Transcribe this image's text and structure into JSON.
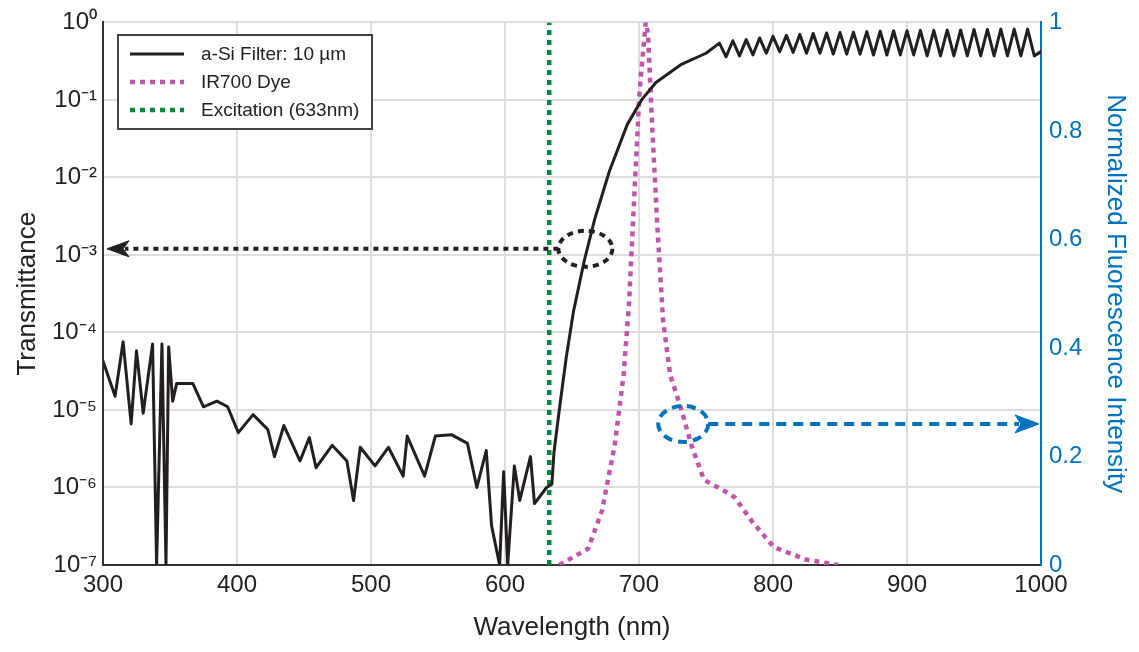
{
  "chart_data": {
    "type": "line",
    "xlabel": "Wavelength (nm)",
    "ylabel": "Transmittance",
    "y2label": "Normalized Fluorescence Intensity",
    "xlim": [
      300,
      1000
    ],
    "xticks": [
      300,
      400,
      500,
      600,
      700,
      800,
      900,
      1000
    ],
    "ylim": [
      1e-07,
      1
    ],
    "yticks": [
      {
        "value": 1,
        "label": "10⁰"
      },
      {
        "value": 0.1,
        "label": "10⁻¹"
      },
      {
        "value": 0.01,
        "label": "10⁻²"
      },
      {
        "value": 0.001,
        "label": "10⁻³"
      },
      {
        "value": 0.0001,
        "label": "10⁻⁴"
      },
      {
        "value": 1e-05,
        "label": "10⁻⁵"
      },
      {
        "value": 1e-06,
        "label": "10⁻⁶"
      },
      {
        "value": 1e-07,
        "label": "10⁻⁷"
      }
    ],
    "y2lim": [
      0,
      1
    ],
    "y2ticks": [
      0,
      0.2,
      0.4,
      0.6,
      0.8,
      1
    ],
    "log": "y",
    "grid": true,
    "legend": "top left",
    "series": [
      {
        "name": "a-Si Filter: 10 µm",
        "color": "#231f20",
        "line_style": "solid",
        "x": [
          300,
          309,
          315,
          321,
          325,
          330,
          337,
          340,
          344,
          347,
          349,
          352,
          355,
          367,
          375,
          385,
          393,
          401,
          412,
          423,
          428,
          435,
          447,
          454,
          459,
          471,
          482,
          487,
          492,
          503,
          513,
          524,
          527,
          540,
          548,
          560,
          572,
          579,
          586,
          590,
          596,
          599,
          602,
          607,
          611,
          619,
          622,
          631,
          635,
          636.5,
          640.5,
          645.8,
          651.2,
          659.2,
          667.2,
          677.9,
          691.2,
          701.9,
          712.6,
          731.2,
          750,
          760,
          765,
          770,
          775,
          780,
          785,
          790,
          795,
          800,
          805,
          810,
          815,
          820,
          825,
          830,
          835,
          840,
          845,
          850,
          855,
          860,
          865,
          870,
          875,
          880,
          885,
          890,
          895,
          900,
          905,
          910,
          915,
          920,
          925,
          930,
          935,
          940,
          945,
          950,
          955,
          960,
          965,
          970,
          975,
          980,
          985,
          990,
          995,
          1000
        ],
        "values": [
          4.3e-05,
          1.5e-05,
          7.6e-05,
          6.6e-06,
          5.8e-05,
          9.1e-06,
          7.1e-05,
          1e-07,
          7.1e-05,
          1e-07,
          6.5e-05,
          1.3e-05,
          2.2e-05,
          2.2e-05,
          1.1e-05,
          1.3e-05,
          1.1e-05,
          5.1e-06,
          8.7e-06,
          5.6e-06,
          2.5e-06,
          6.3e-06,
          2.2e-06,
          4.4e-06,
          1.8e-06,
          3.5e-06,
          2.2e-06,
          6.8e-07,
          3.3e-06,
          1.9e-06,
          3.3e-06,
          1.4e-06,
          4.6e-06,
          1.4e-06,
          4.6e-06,
          4.8e-06,
          3.7e-06,
          1e-06,
          3e-06,
          3.2e-07,
          1e-07,
          1.6e-06,
          1e-07,
          1.9e-06,
          6.8e-07,
          2.5e-06,
          6.2e-07,
          1e-06,
          1.1e-06,
          2.8e-06,
          1e-05,
          4.9e-05,
          0.00019,
          0.00085,
          0.003,
          0.012,
          0.048,
          0.1,
          0.168,
          0.285,
          0.4,
          0.54,
          0.36,
          0.58,
          0.37,
          0.6,
          0.38,
          0.63,
          0.4,
          0.66,
          0.42,
          0.68,
          0.41,
          0.7,
          0.4,
          0.72,
          0.4,
          0.73,
          0.39,
          0.74,
          0.39,
          0.75,
          0.39,
          0.76,
          0.38,
          0.77,
          0.38,
          0.78,
          0.38,
          0.78,
          0.38,
          0.79,
          0.37,
          0.79,
          0.37,
          0.8,
          0.37,
          0.8,
          0.37,
          0.81,
          0.37,
          0.81,
          0.37,
          0.82,
          0.37,
          0.82,
          0.37,
          0.82,
          0.37,
          0.42
        ]
      },
      {
        "name": "IR700 Dye",
        "color": "#c055a9",
        "line_style": "dotted",
        "axis": "y2",
        "x": [
          640.5,
          662,
          672.4,
          681.8,
          688.5,
          692.5,
          695.2,
          697.8,
          700.5,
          705,
          706.7,
          709.8,
          713.9,
          718,
          723.3,
          731.2,
          739.2,
          748.5,
          763.3,
          771.3,
          784.5,
          800.6,
          824.6,
          848.7
        ],
        "values": [
          0,
          0.03,
          0.1,
          0.22,
          0.35,
          0.48,
          0.615,
          0.745,
          0.876,
          1,
          0.98,
          0.81,
          0.615,
          0.45,
          0.35,
          0.29,
          0.22,
          0.157,
          0.137,
          0.125,
          0.08,
          0.033,
          0.01,
          0
        ]
      },
      {
        "name": "Excitation (633nm)",
        "color": "#00873e",
        "line_style": "dotted",
        "x": [
          633,
          633
        ],
        "values": [
          1e-07,
          1
        ]
      }
    ]
  }
}
